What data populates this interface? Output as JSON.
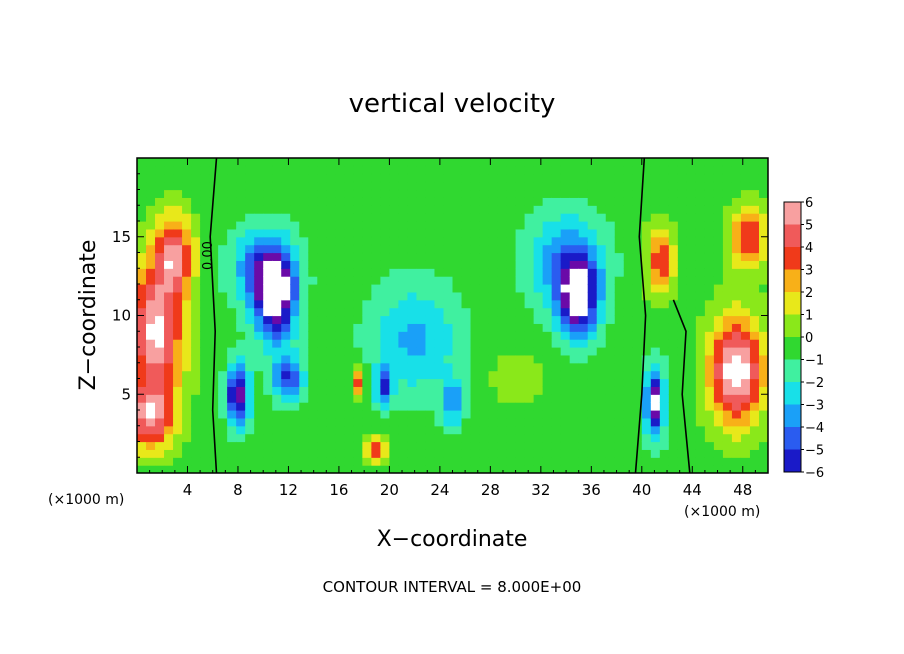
{
  "chart_data": {
    "type": "heatmap",
    "title": "vertical velocity",
    "xlabel": "X−coordinate",
    "ylabel": "Z−coordinate",
    "x_unit_label": "(×1000 m)",
    "z_unit_label": "(×1000 m)",
    "xlim": [
      0,
      50
    ],
    "ylim": [
      0,
      20
    ],
    "x_ticks": [
      4,
      8,
      12,
      16,
      20,
      24,
      28,
      32,
      36,
      40,
      44,
      48
    ],
    "y_ticks": [
      5,
      10,
      15
    ],
    "colorbar": {
      "ticks": [
        "6",
        "5",
        "4",
        "3",
        "2",
        "1",
        "0",
        "−1",
        "−2",
        "−3",
        "−4",
        "−5",
        "−6"
      ],
      "range": [
        -6,
        6
      ],
      "colors": [
        "#6a0aa8",
        "#1a1ac8",
        "#2a5cf0",
        "#1aa0f8",
        "#18e0e8",
        "#40f0a0",
        "#30d830",
        "#8ae81a",
        "#e8e81a",
        "#f8b018",
        "#f03a1a",
        "#f05a5a",
        "#f8a0a0"
      ]
    },
    "contour_label": "0.00",
    "footer": "CONTOUR INTERVAL = 8.000E+00",
    "features": [
      {
        "x": 1.5,
        "z": 9,
        "w": 6.5,
        "sx": 2.2,
        "sz": 4.5
      },
      {
        "x": 3,
        "z": 14,
        "w": 5,
        "sx": 1.5,
        "sz": 2.5
      },
      {
        "x": 1,
        "z": 3.5,
        "w": 5,
        "sx": 2,
        "sz": 2
      },
      {
        "x": 11,
        "z": 11,
        "w": -6.5,
        "sx": 1.6,
        "sz": 2.8
      },
      {
        "x": 10,
        "z": 13,
        "w": -4,
        "sx": 2.5,
        "sz": 2.5
      },
      {
        "x": 8,
        "z": 5,
        "w": -6.5,
        "sx": 0.9,
        "sz": 2
      },
      {
        "x": 12,
        "z": 6,
        "w": -4.5,
        "sx": 1.2,
        "sz": 1.5
      },
      {
        "x": 17.5,
        "z": 5.8,
        "w": 4,
        "sx": 0.5,
        "sz": 1
      },
      {
        "x": 19,
        "z": 1.5,
        "w": 5,
        "sx": 0.8,
        "sz": 0.8
      },
      {
        "x": 19.5,
        "z": 5.5,
        "w": -4.5,
        "sx": 0.6,
        "sz": 1.2
      },
      {
        "x": 22,
        "z": 8.5,
        "w": -2.8,
        "sx": 3.5,
        "sz": 3.5
      },
      {
        "x": 25,
        "z": 4.5,
        "w": -3.5,
        "sx": 0.8,
        "sz": 1.5
      },
      {
        "x": 35,
        "z": 11,
        "w": -6.5,
        "sx": 1.6,
        "sz": 2.5
      },
      {
        "x": 34,
        "z": 13.5,
        "w": -3.5,
        "sx": 3,
        "sz": 3
      },
      {
        "x": 41,
        "z": 4.5,
        "w": -6.5,
        "sx": 0.8,
        "sz": 2.2
      },
      {
        "x": 47.5,
        "z": 6.5,
        "w": 7,
        "sx": 2.2,
        "sz": 3.5
      },
      {
        "x": 41.5,
        "z": 13.5,
        "w": 4.5,
        "sx": 1.1,
        "sz": 2.2
      },
      {
        "x": 48.5,
        "z": 15,
        "w": 4.5,
        "sx": 1.5,
        "sz": 2
      },
      {
        "x": 30,
        "z": 6,
        "w": 1.5,
        "sx": 2,
        "sz": 1.5
      }
    ],
    "zero_contours": [
      [
        [
          6.3,
          0
        ],
        [
          6,
          4
        ],
        [
          6.2,
          9
        ],
        [
          5.8,
          15
        ],
        [
          6.3,
          20
        ]
      ],
      [
        [
          39.5,
          0
        ],
        [
          40,
          5
        ],
        [
          40.3,
          10
        ],
        [
          39.8,
          15
        ],
        [
          40.2,
          20
        ]
      ],
      [
        [
          43.8,
          0
        ],
        [
          43.2,
          5
        ],
        [
          43.5,
          9
        ],
        [
          42.5,
          11
        ]
      ]
    ]
  }
}
